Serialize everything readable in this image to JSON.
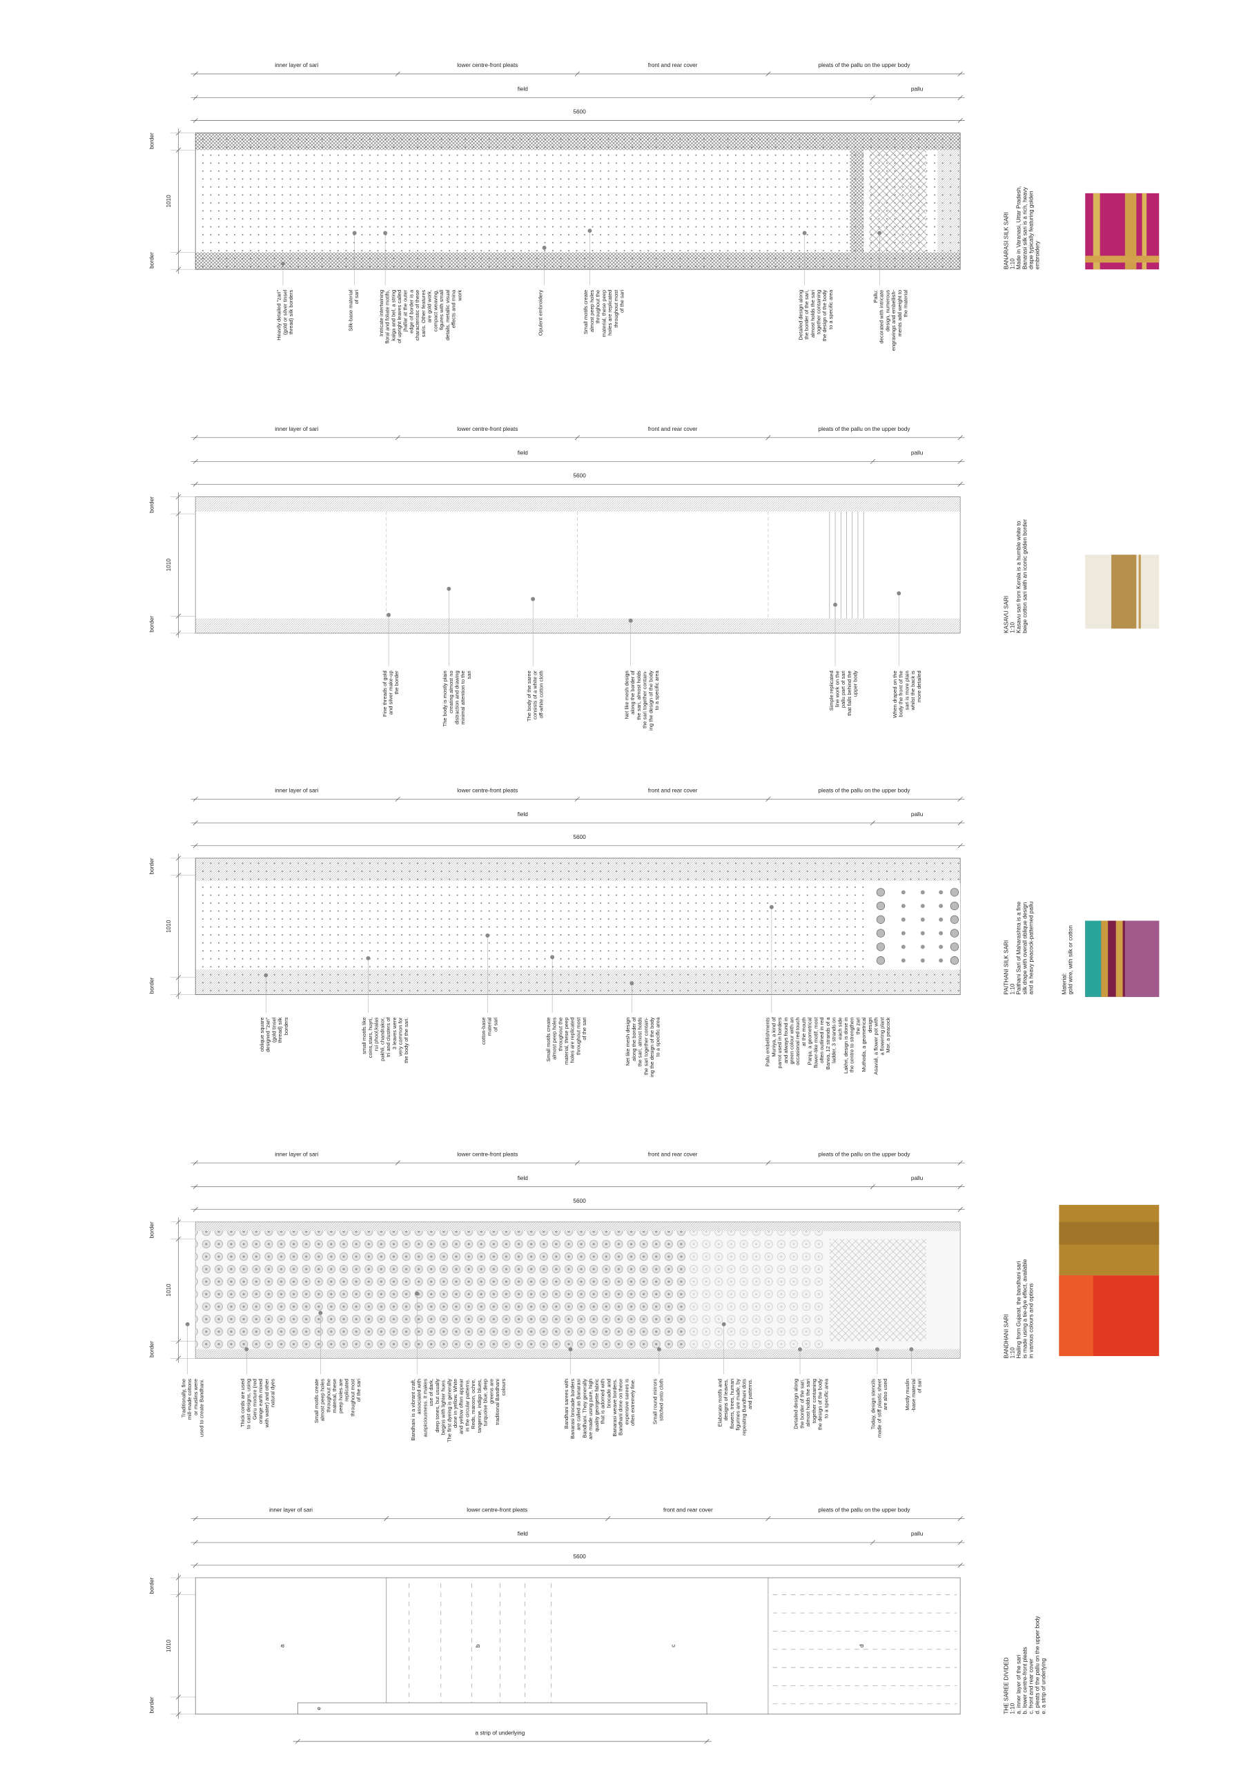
{
  "panels": [
    {
      "segments": [
        "inner layer of sari",
        "lower centre-front pleats",
        "front and rear cover",
        "pleats of the pallu on the upper body"
      ],
      "field": "field",
      "pallu": "pallu",
      "length": 5600,
      "dims": [
        "border",
        1010,
        "border"
      ],
      "annotations": [
        {
          "lines": [
            "Heavily detailed \"zari\"",
            "(gold or silver tinsel",
            "thread) silk borders"
          ]
        },
        {
          "lines": [
            "Silk-base material",
            "of sari"
          ]
        },
        {
          "lines": [
            "Intricate intertwining",
            "floral and foliate motifs,",
            "kalga and bel, a string",
            "of upright leaves called",
            "jhallar at the outer",
            "edge of border is a",
            "characteristic of these",
            "saris. Other features",
            "are gold work,",
            "compact weaving,",
            "figures with small",
            "details, metallic visual",
            "effects and mina",
            "work"
          ]
        },
        {
          "lines": [
            "Opulent embroidery"
          ]
        },
        {
          "lines": [
            "Small motifs create",
            "almost peep holes",
            "throughout the",
            "material, these peep",
            "holes are replicated",
            "throughout most",
            "of the sari"
          ],
          "color": "#e3121b"
        },
        {
          "lines": [
            "Detailed design along",
            "the border of the sari,",
            "almost holds the sari",
            "together containing",
            "the design of the body",
            "to a specific area"
          ],
          "color": "#e3121b"
        },
        {
          "lines": [
            "Pallu:",
            "decorated with intricate",
            "design, numerous",
            "engravings and embellish-",
            "ments add weight to",
            "the material"
          ]
        }
      ],
      "title": [
        "BANARASI SILK SARI",
        "1:10",
        "Made in Varanasi, Uttar Pradesh,",
        "Banarasi silk sari is a rich, heavy",
        "drape typically featuring golden",
        "embroidery"
      ]
    },
    {
      "segments": [
        "inner layer of sari",
        "lower centre-front pleats",
        "front and rear cover",
        "pleats of the pallu on the upper body"
      ],
      "field": "field",
      "pallu": "pallu",
      "length": 5600,
      "dims": [
        "border",
        1010,
        "border"
      ],
      "annotations": [
        {
          "lines": [
            "Fine threads of gold",
            "and silver make-up",
            "the border"
          ]
        },
        {
          "lines": [
            "The body is mostly plain",
            "creating almost no",
            "distraction and drawing",
            "minimal attention to the",
            "sari"
          ],
          "color": "#e3121b"
        },
        {
          "lines": [
            "The body of the saree",
            "consists of a white or",
            "off-white cotton cloth"
          ]
        },
        {
          "lines": [
            "Net like mesh design",
            "along the border of",
            "the sari, almost holds",
            "the sari together contain-",
            "ing the design of the body",
            "to a specific area"
          ],
          "color": "#e3121b"
        },
        {
          "lines": [
            "Simple replicated",
            "line work on the",
            "pallu part of sari",
            "that falls behind the",
            "upper body"
          ],
          "color": "#e3121b"
        },
        {
          "lines": [
            "When draped on the",
            "body the front of the",
            "sari is more plain",
            "whilst the back is",
            "more detailed"
          ],
          "color": "#e3121b"
        }
      ],
      "title": [
        "KASAVU SARI",
        "1:10",
        "Kasavu sari from Kerala is a humble white to",
        "beige cotton sari with an iconic golden border"
      ]
    },
    {
      "segments": [
        "inner layer of sari",
        "lower centre-front pleats",
        "front and rear cover",
        "pleats of the pallu on the upper body"
      ],
      "field": "field",
      "pallu": "pallu",
      "length": 5600,
      "dims": [
        "border",
        1010,
        "border"
      ],
      "annotations": [
        {
          "lines": [
            "oblique square",
            "designed \"zari\"",
            "(gold tinsel",
            "thread) silk",
            "borders"
          ]
        },
        {
          "lines": [
            "small motifs like",
            "coins,stars, huyri,",
            "rui phool,kalas",
            "pakhli, chandrakor,",
            "tri and clusters of",
            "3 leaves were",
            "very common for",
            "the body of the sari."
          ]
        },
        {
          "lines": [
            "cotton-base",
            "material",
            "of sari"
          ]
        },
        {
          "lines": [
            "Small motifs create",
            "almost peep holes",
            "throughout the",
            "material, these peep",
            "holes are replicated",
            "throughout most",
            "of the sari"
          ],
          "color": "#e3121b"
        },
        {
          "lines": [
            "Net like mesh design",
            "along the border of",
            "the sari, almost holds",
            "the sari together contain-",
            "ing the design of the body",
            "to a specific area"
          ],
          "color": "#e3121b"
        },
        {
          "lines": [
            "Pallu embellishments",
            "Muniya, a kind of",
            "parrot used in borders",
            "and always found in",
            "green colour with an",
            "occasional red touch",
            "at the mouth",
            "Panja, a geometrical",
            "flower-like motif, most",
            "often outlined in red",
            "Barwa, 12 strands of a",
            "ladder, 3 strands on",
            "each side",
            "Lakhri, design is done in",
            "the centre to strengthen",
            "the zari",
            "Muthoda, a geometrical",
            "design",
            "Asavali, a flower pot with",
            "a flowering plant",
            "Mor, a peacock"
          ]
        }
      ],
      "title": [
        "PAITHANI SILK SARI",
        "1:10",
        "Paithani Sari of Maharashtra is a fine",
        "silk drape with overall oblique design",
        "and a heavy peacock-patterned pallu"
      ],
      "material": [
        "Material:",
        "gold wire, with silk or cotton"
      ]
    },
    {
      "segments": [
        "inner layer of sari",
        "lower centre-front pleats",
        "front and rear cover",
        "pleats of the pallu on the upper body"
      ],
      "field": "field",
      "pallu": "pallu",
      "length": 5600,
      "dims": [
        "border",
        1010,
        "border"
      ],
      "annotations": [
        {
          "lines": [
            "Traditionally, fine",
            "mill-made cottons",
            "or muslins were",
            "used to create Bandhani."
          ]
        },
        {
          "lines": [
            "Thick cords are used",
            "to cast designs, using",
            "Geru mixture (red",
            "orange earth mixed",
            "with water) and other",
            "natural dyes"
          ]
        },
        {
          "lines": [
            "Small motifs create",
            "almost peep holes",
            "throughout the",
            "material, these",
            "peep holes are",
            "replicated",
            "throughout most",
            "of the sari"
          ],
          "color": "#e3121b"
        },
        {
          "lines": [
            "Bandhani is a vibrant craft,",
            "associated with",
            "auspiciousness. It makes",
            "use of dark,",
            "deep tones, but usually",
            "begins with lighter hues.",
            "The first dyeing is generally",
            "done in yellow. White",
            "and yellow often appear",
            "in the circular patterns.",
            "Reds, maroon, ochre,",
            "tangerine, indigo blues,",
            "turquoise blue, deep",
            "greens are",
            "traditional Bandhani",
            "colours"
          ]
        },
        {
          "lines": [
            "Bandhani sarees with",
            "Banarasi brocade borders",
            "are called as Banarasi",
            "Bandhani. They generally",
            "are made using pure, high",
            "quality georgette fabric",
            "that is adorned with",
            "brocade and",
            "Banarasi weave borders.",
            "Bandhani done on these",
            "expensive sarees is",
            "often extremely fine."
          ]
        },
        {
          "lines": [
            "Small round mirrors",
            "stitched onto cloth"
          ]
        },
        {
          "lines": [
            "Elaborate motifs and",
            "designs of leaves,",
            "flowers, trees, human",
            "figurines are made, by",
            "repeating Bandhani dots",
            "and patterns."
          ]
        },
        {
          "lines": [
            "Detailed design along",
            "the border of the sari,",
            "almost holds the sari",
            "together containing",
            "the design of the body",
            "to a specific area"
          ],
          "color": "#e3121b"
        },
        {
          "lines": [
            "Today, design stencils",
            "made of stiff plastic sheet",
            "are also used"
          ]
        },
        {
          "lines": [
            "Mostly muslin",
            "-base material",
            "of sari"
          ]
        }
      ],
      "title": [
        "BANDHANI SARI",
        "1:10",
        "Hailing from Gujarat, the bandhani sari",
        "is made using a tie-dye effect, available",
        "in various colours and options"
      ]
    },
    {
      "segments": [
        "inner layer of sari",
        "lower centre-front pleats",
        "front and rear cover",
        "pleats of the pallu on the upper body"
      ],
      "field": "field",
      "pallu": "pallu",
      "length": 5600,
      "dims": [
        "border",
        1010,
        "border"
      ],
      "labels": [
        "a",
        "b",
        "c",
        "d",
        "e"
      ],
      "strip_note": "a strip of underlying",
      "title": [
        "THE SAREE DIVIDED",
        "1:10",
        "a.    inner layer of the sari",
        "b.    lower centre-front pleats",
        "c.    front and rear cover",
        "d.    pleats of the pallu on the upper body",
        "e.    a strip of underlying"
      ]
    }
  ]
}
